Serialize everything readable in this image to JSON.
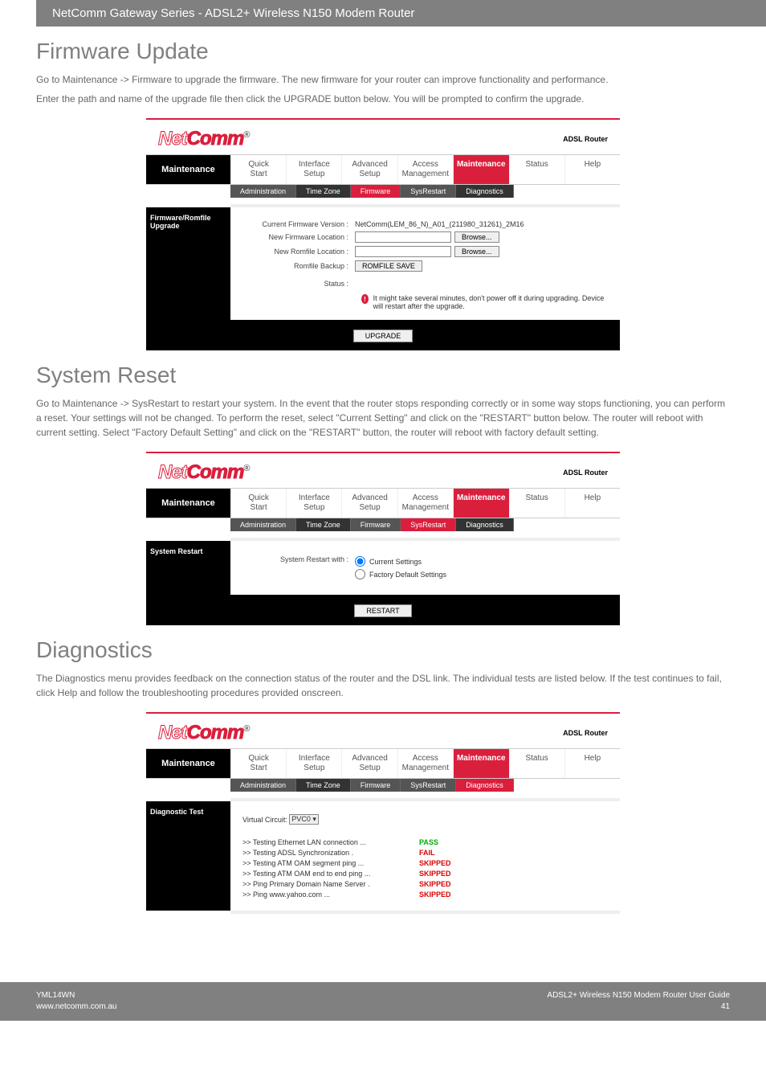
{
  "bannerTitle": "NetComm Gateway Series - ADSL2+ Wireless N150 Modem Router",
  "sections": {
    "fw": {
      "title": "Firmware Update",
      "p1": "Go to Maintenance -> Firmware to upgrade the firmware. The new firmware for your router can improve functionality and performance.",
      "p2": "Enter the path and name of the upgrade file then click the UPGRADE button below. You will be prompted to confirm the upgrade."
    },
    "sr": {
      "title": "System Reset",
      "p1": "Go to Maintenance -> SysRestart to restart your system. In the event that the router stops responding correctly or in some way stops functioning, you can perform a reset. Your settings will not be changed. To perform the reset, select \"Current Setting\" and click on the \"RESTART\" button below. The router will reboot with current setting. Select \"Factory Default Setting\" and click on the \"RESTART\" button, the router will reboot with factory default setting."
    },
    "dg": {
      "title": "Diagnostics",
      "p1": "The Diagnostics menu provides feedback on the connection status of the router and the DSL link. The individual tests are listed below. If the test continues to fail, click Help and follow the troubleshooting procedures provided onscreen."
    }
  },
  "shared": {
    "logoNet": "Net",
    "logoComm": "Comm",
    "reg": "®",
    "adsl": "ADSL Router",
    "sidebar": "Maintenance",
    "topnav": [
      "Quick\nStart",
      "Interface\nSetup",
      "Advanced\nSetup",
      "Access\nManagement",
      "Maintenance",
      "Status",
      "Help"
    ],
    "subnav": [
      "Administration",
      "Time Zone",
      "Firmware",
      "SysRestart",
      "Diagnostics"
    ]
  },
  "fwShot": {
    "sideTitle": "Firmware/Romfile Upgrade",
    "curVerLabel": "Current Firmware Version :",
    "curVerVal": "NetComm(LEM_86_N)_A01_(211980_31261)_2M16",
    "newFwLabel": "New Firmware Location :",
    "newRomLabel": "New Romfile Location :",
    "romBackupLabel": "Romfile Backup :",
    "statusLabel": "Status :",
    "browse": "Browse...",
    "romSave": "ROMFILE SAVE",
    "statusMsg": "It might take several minutes, don't power off it during upgrading. Device will restart after the upgrade.",
    "upgrade": "UPGRADE"
  },
  "srShot": {
    "sideTitle": "System Restart",
    "label": "System Restart with :",
    "opt1": "Current Settings",
    "opt2": "Factory Default Settings",
    "restart": "RESTART"
  },
  "dgShot": {
    "sideTitle": "Diagnostic Test",
    "vcLabel": "Virtual Circuit:",
    "vcVal": "PVC0",
    "tests": [
      {
        "t": ">> Testing Ethernet LAN connection ...",
        "r": "PASS",
        "c": "pass"
      },
      {
        "t": ">> Testing ADSL Synchronization .",
        "r": "FAIL",
        "c": "fail"
      },
      {
        "t": ">> Testing ATM OAM segment ping ...",
        "r": "SKIPPED",
        "c": "skip"
      },
      {
        "t": ">> Testing ATM OAM end to end ping ...",
        "r": "SKIPPED",
        "c": "skip"
      },
      {
        "t": ">> Ping Primary Domain Name Server .",
        "r": "SKIPPED",
        "c": "skip"
      },
      {
        "t": ">> Ping www.yahoo.com ...",
        "r": "SKIPPED",
        "c": "skip"
      }
    ]
  },
  "footer": {
    "l1": "YML14WN",
    "l2": "www.netcomm.com.au",
    "r1": "ADSL2+ Wireless N150 Modem Router User Guide",
    "r2": "41"
  }
}
